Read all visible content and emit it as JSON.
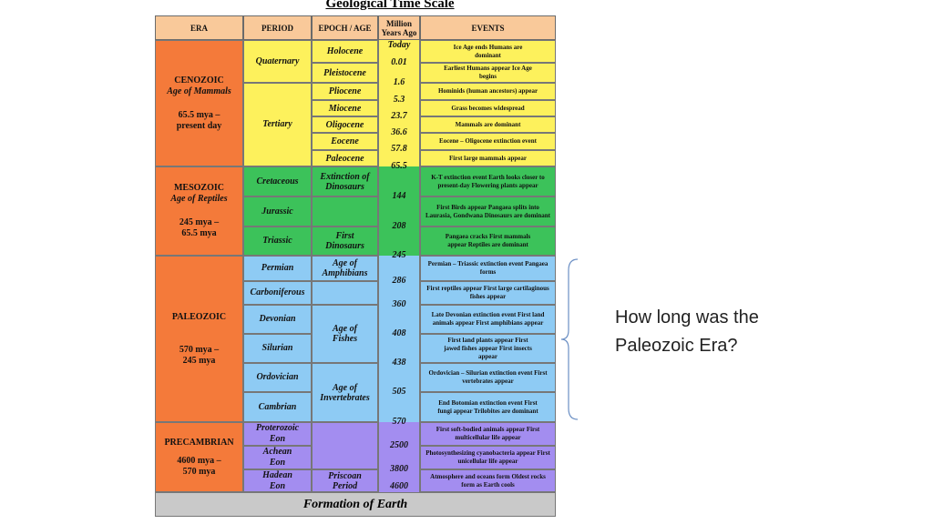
{
  "title": "Geological Time Scale",
  "headers": {
    "era": "ERA",
    "period": "PERIOD",
    "epoch": "EPOCH / AGE",
    "mya": "Million Years Ago",
    "events": "EVENTS"
  },
  "eras": [
    {
      "name": "CENOZOIC",
      "sub": "Age of Mammals",
      "range": "65.5 mya – present day",
      "color": "#f47a3a"
    },
    {
      "name": "MESOZOIC",
      "sub": "Age of Reptiles",
      "range": "245 mya – 65.5 mya",
      "color": "#f47a3a"
    },
    {
      "name": "PALEOZOIC",
      "sub": "",
      "range": "570 mya – 245 mya",
      "color": "#f47a3a"
    },
    {
      "name": "PRECAMBRIAN",
      "sub": "",
      "range": "4600 mya – 570 mya",
      "color": "#f47a3a"
    }
  ],
  "periods": [
    "Quaternary",
    "Tertiary",
    "Cretaceous",
    "Jurassic",
    "Triassic",
    "Permian",
    "Carboniferous",
    "Devonian",
    "Silurian",
    "Ordovician",
    "Cambrian",
    "Proterozoic Eon",
    "Achean Eon",
    "Hadean Eon"
  ],
  "epochs": [
    "Holocene",
    "Pleistocene",
    "Pliocene",
    "Miocene",
    "Oligocene",
    "Eocene",
    "Paleocene",
    "Extinction of Dinosaurs",
    "First Dinosaurs",
    "Age of Amphibians",
    "Age of Fishes",
    "Age of Invertebrates",
    "Priscoan Period"
  ],
  "mya": [
    "Today",
    "0.01",
    "1.6",
    "5.3",
    "23.7",
    "36.6",
    "57.8",
    "65.5",
    "144",
    "208",
    "245",
    "286",
    "360",
    "408",
    "438",
    "505",
    "570",
    "2500",
    "3800",
    "4600"
  ],
  "events": [
    "Ice Age ends Humans are dominant",
    "Earliest Humans appear Ice Age begins",
    "Hominids (human ancestors) appear",
    "Grass becomes widespread",
    "Mammals are dominant",
    "Eocene – Oligocene extinction event",
    "First large mammals appear",
    "K-T extinction event Earth looks closer to present-day Flowering plants appear",
    "First Birds appear Pangaea splits into Laurasia, Gondwana Dinosaurs are dominant",
    "Pangaea cracks First mammals appear Reptiles are dominant",
    "Permian – Triassic extinction event Pangaea forms",
    "First reptiles appear First large cartilaginous fishes appear",
    "Late Devonian extinction event First land animals appear First amphibians appear",
    "First land plants appear First jawed fishes appear First insects appear",
    "Ordovician – Silurian extinction event First vertebrates appear",
    "End Botomian extinction event First fungi appear Trilobites are dominant",
    "First soft-bodied animals appear First multicellular life appear",
    "Photosynthesizing cyanobacteria appear First unicellular life appear",
    "Atmosphere and oceans form Oldest rocks form as Earth cools"
  ],
  "footer": "Formation of Earth",
  "question": "How long was the Paleozoic Era?",
  "colors": {
    "cenozoic": "#fdf15c",
    "mesozoic": "#3cc25a",
    "paleozoic": "#8ecbf4",
    "precambrian": "#a38df0",
    "era": "#f47a3a",
    "header": "#f9c99a",
    "footer": "#c9c9c9"
  }
}
